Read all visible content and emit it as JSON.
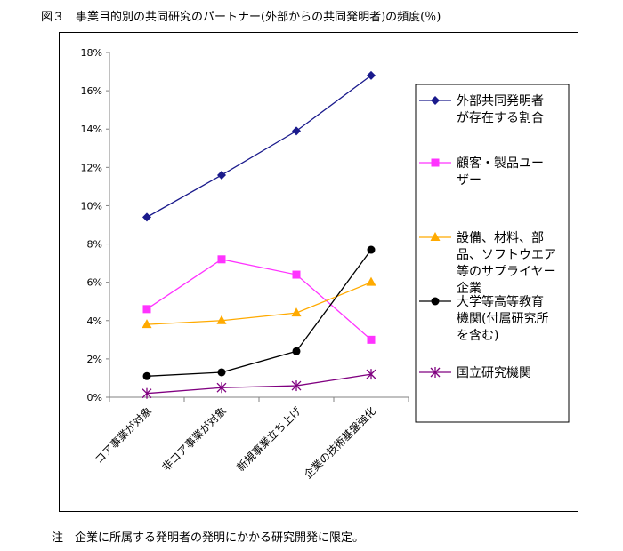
{
  "figure": {
    "title": "図３　事業目的別の共同研究のパートナー(外部からの共同発明者)の頻度(％)",
    "note": "注　企業に所属する発明者の発明にかかる研究開発に限定。"
  },
  "chart_data": {
    "type": "line",
    "title": "",
    "xlabel": "",
    "ylabel": "",
    "ylim": [
      0,
      18
    ],
    "y_ticks": [
      0,
      2,
      4,
      6,
      8,
      10,
      12,
      14,
      16,
      18
    ],
    "y_tick_labels": [
      "0%",
      "2%",
      "4%",
      "6%",
      "8%",
      "10%",
      "12%",
      "14%",
      "16%",
      "18%"
    ],
    "grid": false,
    "legend_position": "right",
    "categories": [
      "コア事業が対象",
      "非コア事業が対象",
      "新規事業立ち上げ",
      "企業の技術基盤強化"
    ],
    "series": [
      {
        "name": "外部共同発明者が存在する割合",
        "legend_lines": [
          "外部共同発明者",
          "が存在する割合"
        ],
        "values": [
          9.4,
          11.6,
          13.9,
          16.8
        ],
        "color": "#1a1a8c",
        "marker": "diamond"
      },
      {
        "name": "顧客・製品ユーザー",
        "legend_lines": [
          "顧客・製品ユー",
          "ザー"
        ],
        "values": [
          4.6,
          7.2,
          6.4,
          3.0
        ],
        "color": "#ff33ff",
        "marker": "square"
      },
      {
        "name": "設備、材料、部品、ソフトウエア等のサプライヤー企業",
        "legend_lines": [
          "設備、材料、部",
          "品、ソフトウエア",
          "等のサプライヤー",
          "企業"
        ],
        "values": [
          3.8,
          4.0,
          4.4,
          6.0
        ],
        "color": "#ffaa00",
        "marker": "triangle"
      },
      {
        "name": "大学等高等教育機関(付属研究所を含む)",
        "legend_lines": [
          "大学等高等教育",
          "機関(付属研究所",
          "を含む)"
        ],
        "values": [
          1.1,
          1.3,
          2.4,
          7.7
        ],
        "color": "#000000",
        "marker": "circle"
      },
      {
        "name": "国立研究機関",
        "legend_lines": [
          "国立研究機関"
        ],
        "values": [
          0.2,
          0.5,
          0.6,
          1.2
        ],
        "color": "#800080",
        "marker": "star"
      }
    ]
  }
}
